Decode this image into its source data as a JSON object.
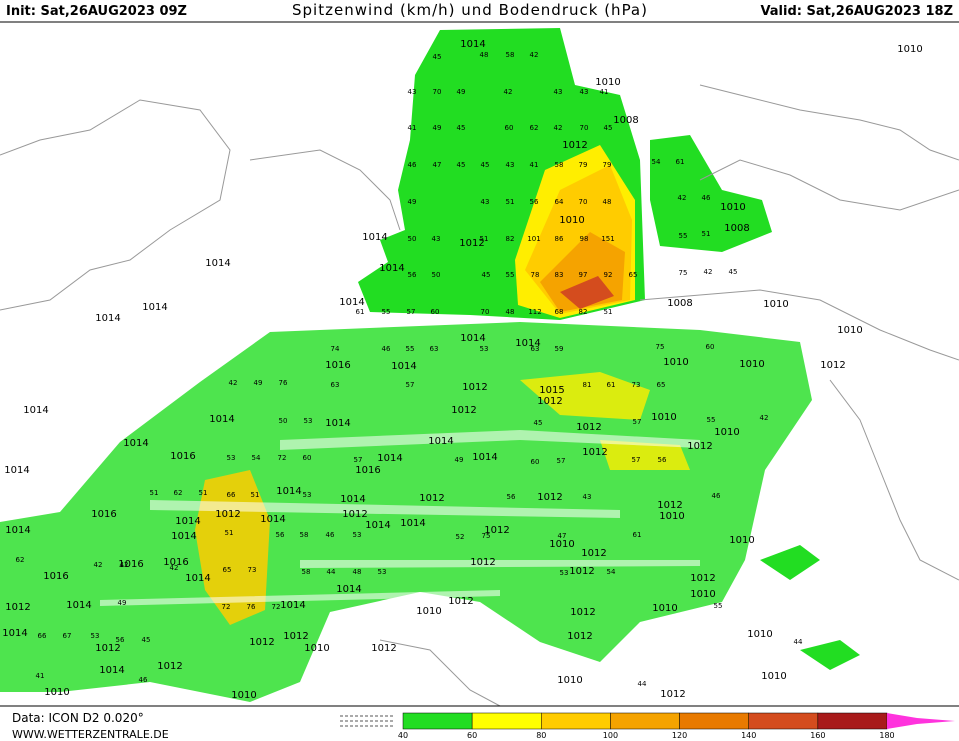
{
  "header": {
    "init": "Init: Sat,26AUG2023 09Z",
    "title": "Spitzenwind (km/h) und Bodendruck (hPa)",
    "valid": "Valid: Sat,26AUG2023 18Z"
  },
  "footer": {
    "data": "Data: ICON D2 0.020°",
    "site": "WWW.WETTERZENTRALE.DE"
  },
  "colorbar": {
    "ticks": [
      40,
      60,
      80,
      100,
      120,
      140,
      160,
      180
    ],
    "colors": [
      "#22dd22",
      "#ffff00",
      "#ffcc00",
      "#f5a300",
      "#e87a00",
      "#d44c1e",
      "#a81a1a",
      "#c8106a"
    ]
  },
  "isobars": [
    1014,
    1010,
    1010,
    1008,
    1012,
    1010,
    1012,
    1014,
    1008,
    1010,
    1014,
    1014,
    1014,
    1014,
    1014,
    1008,
    1010,
    1010,
    1014,
    1014,
    1016,
    1010,
    1010,
    1012,
    1014,
    1012,
    1015,
    1012,
    1014,
    1012,
    1014,
    1014,
    1010,
    1010,
    1012,
    1014,
    1014,
    1012,
    1016,
    1016,
    1014,
    1014,
    1012,
    1014,
    1014,
    1014,
    1012,
    1012,
    1012,
    1016,
    1014,
    1012,
    1014,
    1012,
    1014,
    1014,
    1012,
    1010,
    1014,
    1010,
    1010,
    1014,
    1016,
    1016,
    1016,
    1012,
    1012,
    1014,
    1012,
    1012,
    1014,
    1012,
    1014,
    1012,
    1010,
    1014,
    1010,
    1012,
    1010,
    1014,
    1012,
    1012,
    1012,
    1010,
    1012,
    1012,
    1010,
    1014,
    1012,
    1010,
    1010,
    1010,
    1010,
    1012
  ],
  "gusts": [
    45,
    48,
    58,
    42,
    43,
    70,
    49,
    42,
    43,
    43,
    41,
    41,
    49,
    45,
    60,
    62,
    42,
    70,
    45,
    46,
    47,
    45,
    45,
    43,
    41,
    58,
    79,
    79,
    54,
    61,
    49,
    43,
    51,
    56,
    64,
    70,
    48,
    42,
    46,
    50,
    43,
    51,
    82,
    101,
    86,
    98,
    151,
    55,
    51,
    56,
    50,
    45,
    55,
    78,
    83,
    97,
    92,
    65,
    75,
    42,
    45,
    61,
    55,
    57,
    60,
    70,
    48,
    112,
    68,
    82,
    51,
    74,
    46,
    55,
    63,
    53,
    63,
    59,
    75,
    60,
    42,
    49,
    76,
    63,
    57,
    81,
    61,
    73,
    65,
    50,
    53,
    45,
    57,
    55,
    42,
    53,
    54,
    72,
    60,
    57,
    49,
    60,
    57,
    57,
    56,
    51,
    62,
    51,
    66,
    51,
    53,
    56,
    43,
    46,
    51,
    56,
    58,
    46,
    53,
    52,
    75,
    47,
    61,
    62,
    42,
    42,
    42,
    65,
    73,
    58,
    44,
    48,
    53,
    53,
    54,
    49,
    72,
    76,
    72,
    55,
    66,
    67,
    53,
    56,
    45,
    44,
    41,
    46,
    44
  ]
}
